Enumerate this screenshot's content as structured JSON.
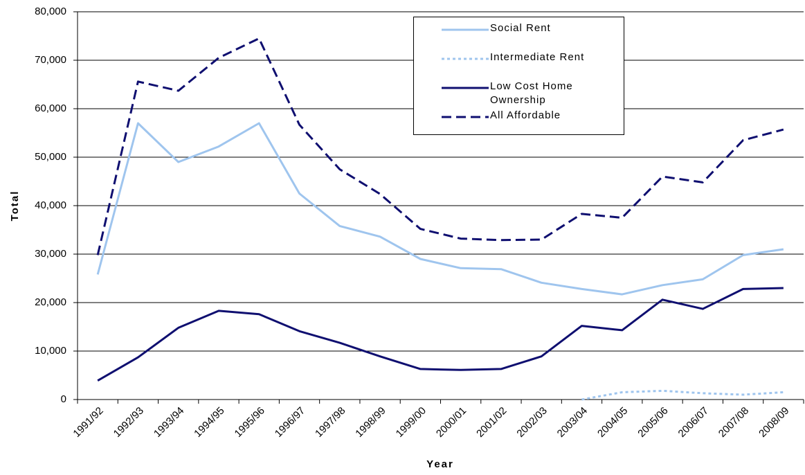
{
  "chart_data": {
    "type": "line",
    "x_label": "Year",
    "y_label": "Total",
    "categories": [
      "1991/92",
      "1992/93",
      "1993/94",
      "1994/95",
      "1995/96",
      "1996/97",
      "1997/98",
      "1998/99",
      "1999/00",
      "2000/01",
      "2001/02",
      "2002/03",
      "2003/04",
      "2004/05",
      "2005/06",
      "2006/07",
      "2007/08",
      "2008/09"
    ],
    "series": [
      {
        "name": "Social Rent",
        "color": "#9fc5ee",
        "style": "solid",
        "values": [
          25800,
          57000,
          49000,
          52200,
          57000,
          42500,
          35800,
          33600,
          29000,
          27100,
          26900,
          24100,
          22800,
          21700,
          23600,
          24800,
          29800,
          31000
        ]
      },
      {
        "name": "Intermediate Rent",
        "color": "#9fc5ee",
        "style": "dotted",
        "values": [
          null,
          null,
          null,
          null,
          null,
          null,
          null,
          null,
          null,
          null,
          null,
          null,
          0,
          1500,
          1800,
          1300,
          1000,
          1500
        ]
      },
      {
        "name": "Low Cost Home Ownership",
        "color": "#0f0f70",
        "style": "solid",
        "values": [
          3900,
          8700,
          14800,
          18300,
          17600,
          14100,
          11700,
          8900,
          6300,
          6100,
          6300,
          8900,
          15200,
          14300,
          20600,
          18700,
          22800,
          23000
        ]
      },
      {
        "name": "All Affordable",
        "color": "#0f0f70",
        "style": "dashed",
        "values": [
          29800,
          65600,
          63700,
          70500,
          74500,
          56700,
          47500,
          42400,
          35200,
          33200,
          32900,
          33000,
          38300,
          37500,
          46000,
          44800,
          53500,
          55700
        ]
      }
    ],
    "ylim": [
      0,
      80000
    ],
    "yticks": [
      0,
      {
        "value": 10000,
        "label": "10,000"
      },
      {
        "value": 20000,
        "label": "20,000"
      },
      {
        "value": 30000,
        "label": "30,000"
      },
      {
        "value": 40000,
        "label": "40,000"
      },
      {
        "value": 50000,
        "label": "50,000"
      },
      {
        "value": 60000,
        "label": "60,000"
      },
      {
        "value": 70000,
        "label": "70,000"
      },
      {
        "value": 80000,
        "label": "80,000"
      }
    ],
    "grid": true
  }
}
